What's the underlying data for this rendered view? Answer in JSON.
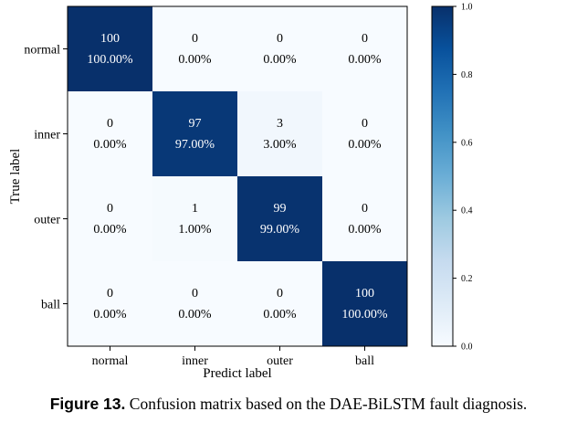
{
  "chart_data": {
    "type": "heatmap",
    "title": "",
    "xlabel": "Predict label",
    "ylabel": "True label",
    "x_categories": [
      "normal",
      "inner",
      "outer",
      "ball"
    ],
    "y_categories": [
      "normal",
      "inner",
      "outer",
      "ball"
    ],
    "counts": [
      [
        100,
        0,
        0,
        0
      ],
      [
        0,
        97,
        3,
        0
      ],
      [
        0,
        1,
        99,
        0
      ],
      [
        0,
        0,
        0,
        100
      ]
    ],
    "percent_labels": [
      [
        "100.00%",
        "0.00%",
        "0.00%",
        "0.00%"
      ],
      [
        "0.00%",
        "97.00%",
        "3.00%",
        "0.00%"
      ],
      [
        "0.00%",
        "1.00%",
        "99.00%",
        "0.00%"
      ],
      [
        "0.00%",
        "0.00%",
        "0.00%",
        "100.00%"
      ]
    ],
    "normalized": [
      [
        1.0,
        0.0,
        0.0,
        0.0
      ],
      [
        0.0,
        0.97,
        0.03,
        0.0
      ],
      [
        0.0,
        0.01,
        0.99,
        0.0
      ],
      [
        0.0,
        0.0,
        0.0,
        1.0
      ]
    ],
    "colormap": "Blues",
    "colorbar": {
      "range": [
        0.0,
        1.0
      ],
      "ticks": [
        0.0,
        0.2,
        0.4,
        0.6,
        0.8,
        1.0
      ],
      "tick_labels": [
        "0.0",
        "0.2",
        "0.4",
        "0.6",
        "0.8",
        "1.0"
      ]
    }
  },
  "caption": {
    "label": "Figure 13.",
    "text": " Confusion matrix based on the DAE-BiLSTM fault diagnosis."
  },
  "colors": {
    "low": "#f7fbff",
    "high": "#08306b",
    "text_dark": "#000000",
    "text_light": "#ffffff"
  }
}
